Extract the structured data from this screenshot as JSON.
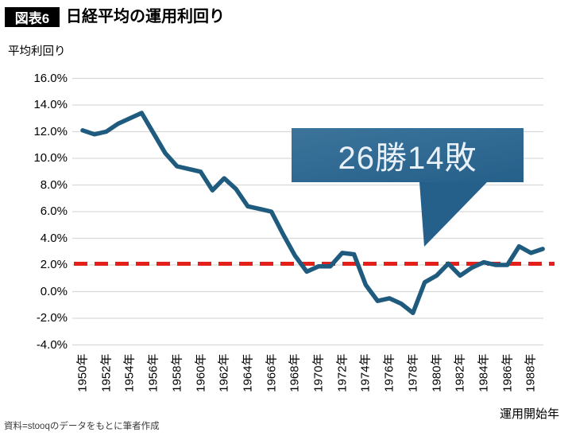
{
  "header": {
    "tag": "図表6",
    "title": "日経平均の運用利回り"
  },
  "y_axis": {
    "unit_label": "平均利回り",
    "tick_labels": [
      "16.0%",
      "14.0%",
      "12.0%",
      "10.0%",
      "8.0%",
      "6.0%",
      "4.0%",
      "2.0%",
      "0.0%",
      "-2.0%",
      "-4.0%"
    ]
  },
  "x_axis": {
    "tick_labels": [
      "1950年",
      "1952年",
      "1954年",
      "1956年",
      "1958年",
      "1960年",
      "1962年",
      "1964年",
      "1966年",
      "1968年",
      "1970年",
      "1972年",
      "1974年",
      "1976年",
      "1978年",
      "1980年",
      "1982年",
      "1984年",
      "1986年",
      "1988年"
    ],
    "title": "運用開始年"
  },
  "callout": {
    "label": "26勝14敗"
  },
  "footer": {
    "source": "資料=stooqのデータをもとに筆者作成"
  },
  "colors": {
    "line": "#1e5b7e",
    "benchmark": "#e3211a",
    "grid": "#d9d9d9",
    "callout_top": "#3c749b",
    "callout_bottom": "#25608a",
    "callout_text": "#e9f1f8"
  },
  "chart_data": {
    "type": "line",
    "title": "日経平均の運用利回り",
    "xlabel": "運用開始年",
    "ylabel": "平均利回り",
    "x": [
      1950,
      1951,
      1952,
      1953,
      1954,
      1955,
      1956,
      1957,
      1958,
      1959,
      1960,
      1961,
      1962,
      1963,
      1964,
      1965,
      1966,
      1967,
      1968,
      1969,
      1970,
      1971,
      1972,
      1973,
      1974,
      1975,
      1976,
      1977,
      1978,
      1979,
      1980,
      1981,
      1982,
      1983,
      1984,
      1985,
      1986,
      1987,
      1988,
      1989
    ],
    "series": [
      {
        "name": "平均利回り(%)",
        "values": [
          12.1,
          11.8,
          12.0,
          12.6,
          13.0,
          13.4,
          11.9,
          10.4,
          9.4,
          9.2,
          9.0,
          7.6,
          8.5,
          7.7,
          6.4,
          6.2,
          6.0,
          4.3,
          2.7,
          1.5,
          1.9,
          1.9,
          2.9,
          2.8,
          0.5,
          -0.7,
          -0.5,
          -0.9,
          -1.6,
          0.7,
          1.2,
          2.1,
          1.2,
          1.8,
          2.2,
          2.0,
          2.0,
          3.4,
          2.9,
          3.2
        ]
      }
    ],
    "benchmark_line": {
      "value": 2.0,
      "style": "dashed"
    },
    "annotation": "26勝14敗",
    "ylim": [
      -4.0,
      16.0
    ],
    "ytick_step": 2.0,
    "grid": true,
    "legend": "none"
  }
}
